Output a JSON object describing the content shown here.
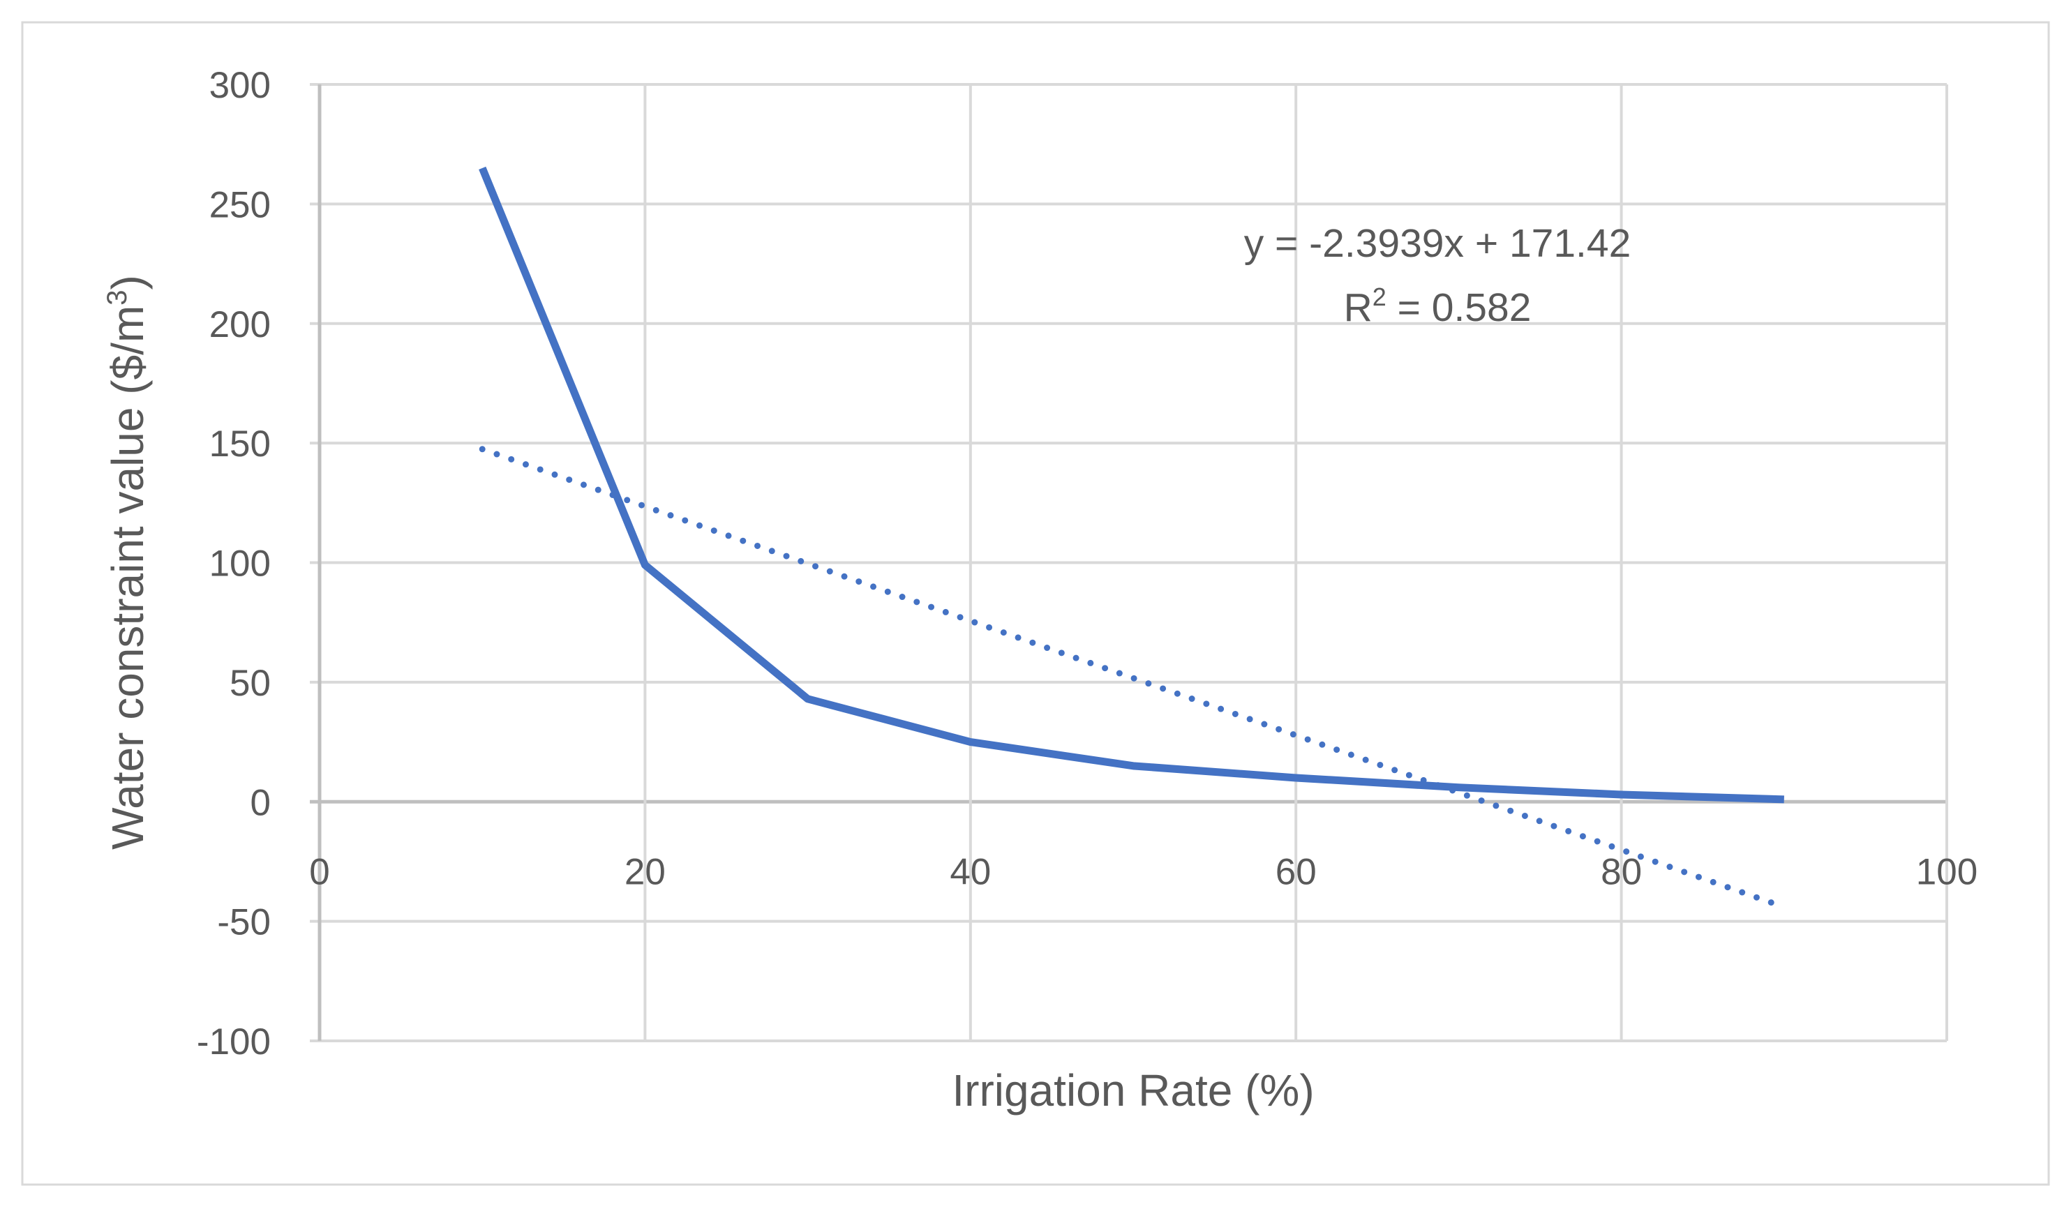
{
  "chart_data": {
    "type": "line",
    "title": "",
    "xlabel": "Irrigation Rate (%)",
    "ylabel_prefix": "Water constraint value ($/m",
    "ylabel_sup": "3",
    "ylabel_suffix": ")",
    "xlim": [
      0,
      100
    ],
    "ylim": [
      -100,
      300
    ],
    "xticks": [
      0,
      20,
      40,
      60,
      80,
      100
    ],
    "yticks": [
      -100,
      -50,
      0,
      50,
      100,
      150,
      200,
      250,
      300
    ],
    "grid": true,
    "series": [
      {
        "name": "Water constraint value",
        "x": [
          10,
          20,
          30,
          40,
          50,
          60,
          70,
          80,
          90
        ],
        "values": [
          265,
          99,
          43,
          25,
          15,
          10,
          6,
          3,
          1
        ],
        "color": "#4472c4",
        "style": "solid"
      }
    ],
    "trendline": {
      "type": "linear",
      "slope": -2.3939,
      "intercept": 171.42,
      "x_range": [
        10,
        90
      ],
      "color": "#4472c4",
      "style": "dotted"
    },
    "annotations": {
      "equation": "y = -2.3939x + 171.42",
      "r2_prefix": "R",
      "r2_sup": "2",
      "r2_suffix": " = 0.582"
    }
  }
}
